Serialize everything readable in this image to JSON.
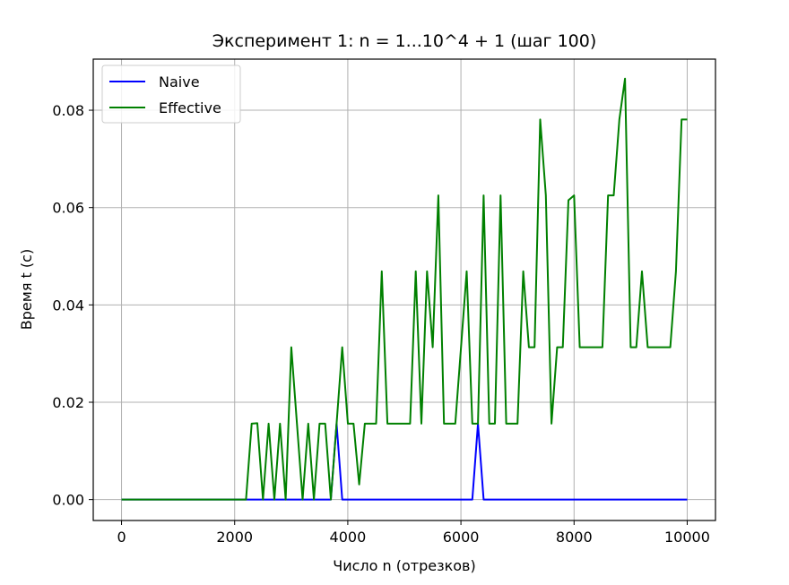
{
  "chart_data": {
    "type": "line",
    "title": "Эксперимент 1: n = 1...10^4 + 1 (шаг 100)",
    "xlabel": "Число n (отрезков)",
    "ylabel": "Время t (c)",
    "xlim": [
      -500,
      10500
    ],
    "ylim": [
      -0.0043,
      0.0905
    ],
    "xticks": [
      0,
      2000,
      4000,
      6000,
      8000,
      10000
    ],
    "xtick_labels": [
      "0",
      "2000",
      "4000",
      "6000",
      "8000",
      "10000"
    ],
    "yticks": [
      0.0,
      0.02,
      0.04,
      0.06,
      0.08
    ],
    "ytick_labels": [
      "0.00",
      "0.02",
      "0.04",
      "0.06",
      "0.08"
    ],
    "grid": true,
    "legend_position": "top-left",
    "series": [
      {
        "name": "Naive",
        "color": "#0000ff",
        "points": [
          [
            1,
            0
          ],
          [
            3701,
            0
          ],
          [
            3801,
            0.0156
          ],
          [
            3901,
            0
          ],
          [
            6201,
            0
          ],
          [
            6301,
            0.0156
          ],
          [
            6401,
            0
          ],
          [
            10001,
            0
          ]
        ]
      },
      {
        "name": "Effective",
        "color": "#008000",
        "points": [
          [
            1,
            0
          ],
          [
            2201,
            0
          ],
          [
            2301,
            0.0156
          ],
          [
            2401,
            0.0157
          ],
          [
            2501,
            0
          ],
          [
            2601,
            0.0156
          ],
          [
            2701,
            0
          ],
          [
            2801,
            0.0156
          ],
          [
            2901,
            0
          ],
          [
            3001,
            0.0313
          ],
          [
            3101,
            0.0156
          ],
          [
            3201,
            0
          ],
          [
            3301,
            0.0156
          ],
          [
            3401,
            0
          ],
          [
            3501,
            0.0156
          ],
          [
            3601,
            0.0156
          ],
          [
            3701,
            0
          ],
          [
            3801,
            0.0156
          ],
          [
            3901,
            0.0313
          ],
          [
            4001,
            0.0156
          ],
          [
            4101,
            0.0156
          ],
          [
            4201,
            0.0031
          ],
          [
            4301,
            0.0156
          ],
          [
            4401,
            0.0156
          ],
          [
            4501,
            0.0156
          ],
          [
            4601,
            0.0469
          ],
          [
            4701,
            0.0156
          ],
          [
            4801,
            0.0156
          ],
          [
            4901,
            0.0156
          ],
          [
            5001,
            0.0156
          ],
          [
            5101,
            0.0156
          ],
          [
            5201,
            0.0469
          ],
          [
            5301,
            0.0156
          ],
          [
            5401,
            0.0469
          ],
          [
            5501,
            0.0313
          ],
          [
            5601,
            0.0625
          ],
          [
            5701,
            0.0156
          ],
          [
            5801,
            0.0156
          ],
          [
            5901,
            0.0156
          ],
          [
            6001,
            0.0313
          ],
          [
            6101,
            0.0469
          ],
          [
            6201,
            0.0156
          ],
          [
            6301,
            0.0156
          ],
          [
            6401,
            0.0625
          ],
          [
            6501,
            0.0156
          ],
          [
            6601,
            0.0156
          ],
          [
            6701,
            0.0625
          ],
          [
            6801,
            0.0156
          ],
          [
            6901,
            0.0156
          ],
          [
            7001,
            0.0156
          ],
          [
            7101,
            0.0469
          ],
          [
            7201,
            0.0313
          ],
          [
            7301,
            0.0313
          ],
          [
            7401,
            0.0781
          ],
          [
            7501,
            0.0625
          ],
          [
            7601,
            0.0156
          ],
          [
            7701,
            0.0313
          ],
          [
            7801,
            0.0313
          ],
          [
            7901,
            0.0615
          ],
          [
            8001,
            0.0625
          ],
          [
            8101,
            0.0313
          ],
          [
            8201,
            0.0313
          ],
          [
            8301,
            0.0313
          ],
          [
            8401,
            0.0313
          ],
          [
            8501,
            0.0313
          ],
          [
            8601,
            0.0625
          ],
          [
            8701,
            0.0625
          ],
          [
            8801,
            0.0781
          ],
          [
            8901,
            0.0865
          ],
          [
            9001,
            0.0313
          ],
          [
            9101,
            0.0313
          ],
          [
            9201,
            0.0469
          ],
          [
            9301,
            0.0313
          ],
          [
            9401,
            0.0313
          ],
          [
            9501,
            0.0313
          ],
          [
            9601,
            0.0313
          ],
          [
            9701,
            0.0313
          ],
          [
            9801,
            0.0469
          ],
          [
            9901,
            0.0781
          ],
          [
            10001,
            0.0781
          ]
        ]
      }
    ]
  }
}
